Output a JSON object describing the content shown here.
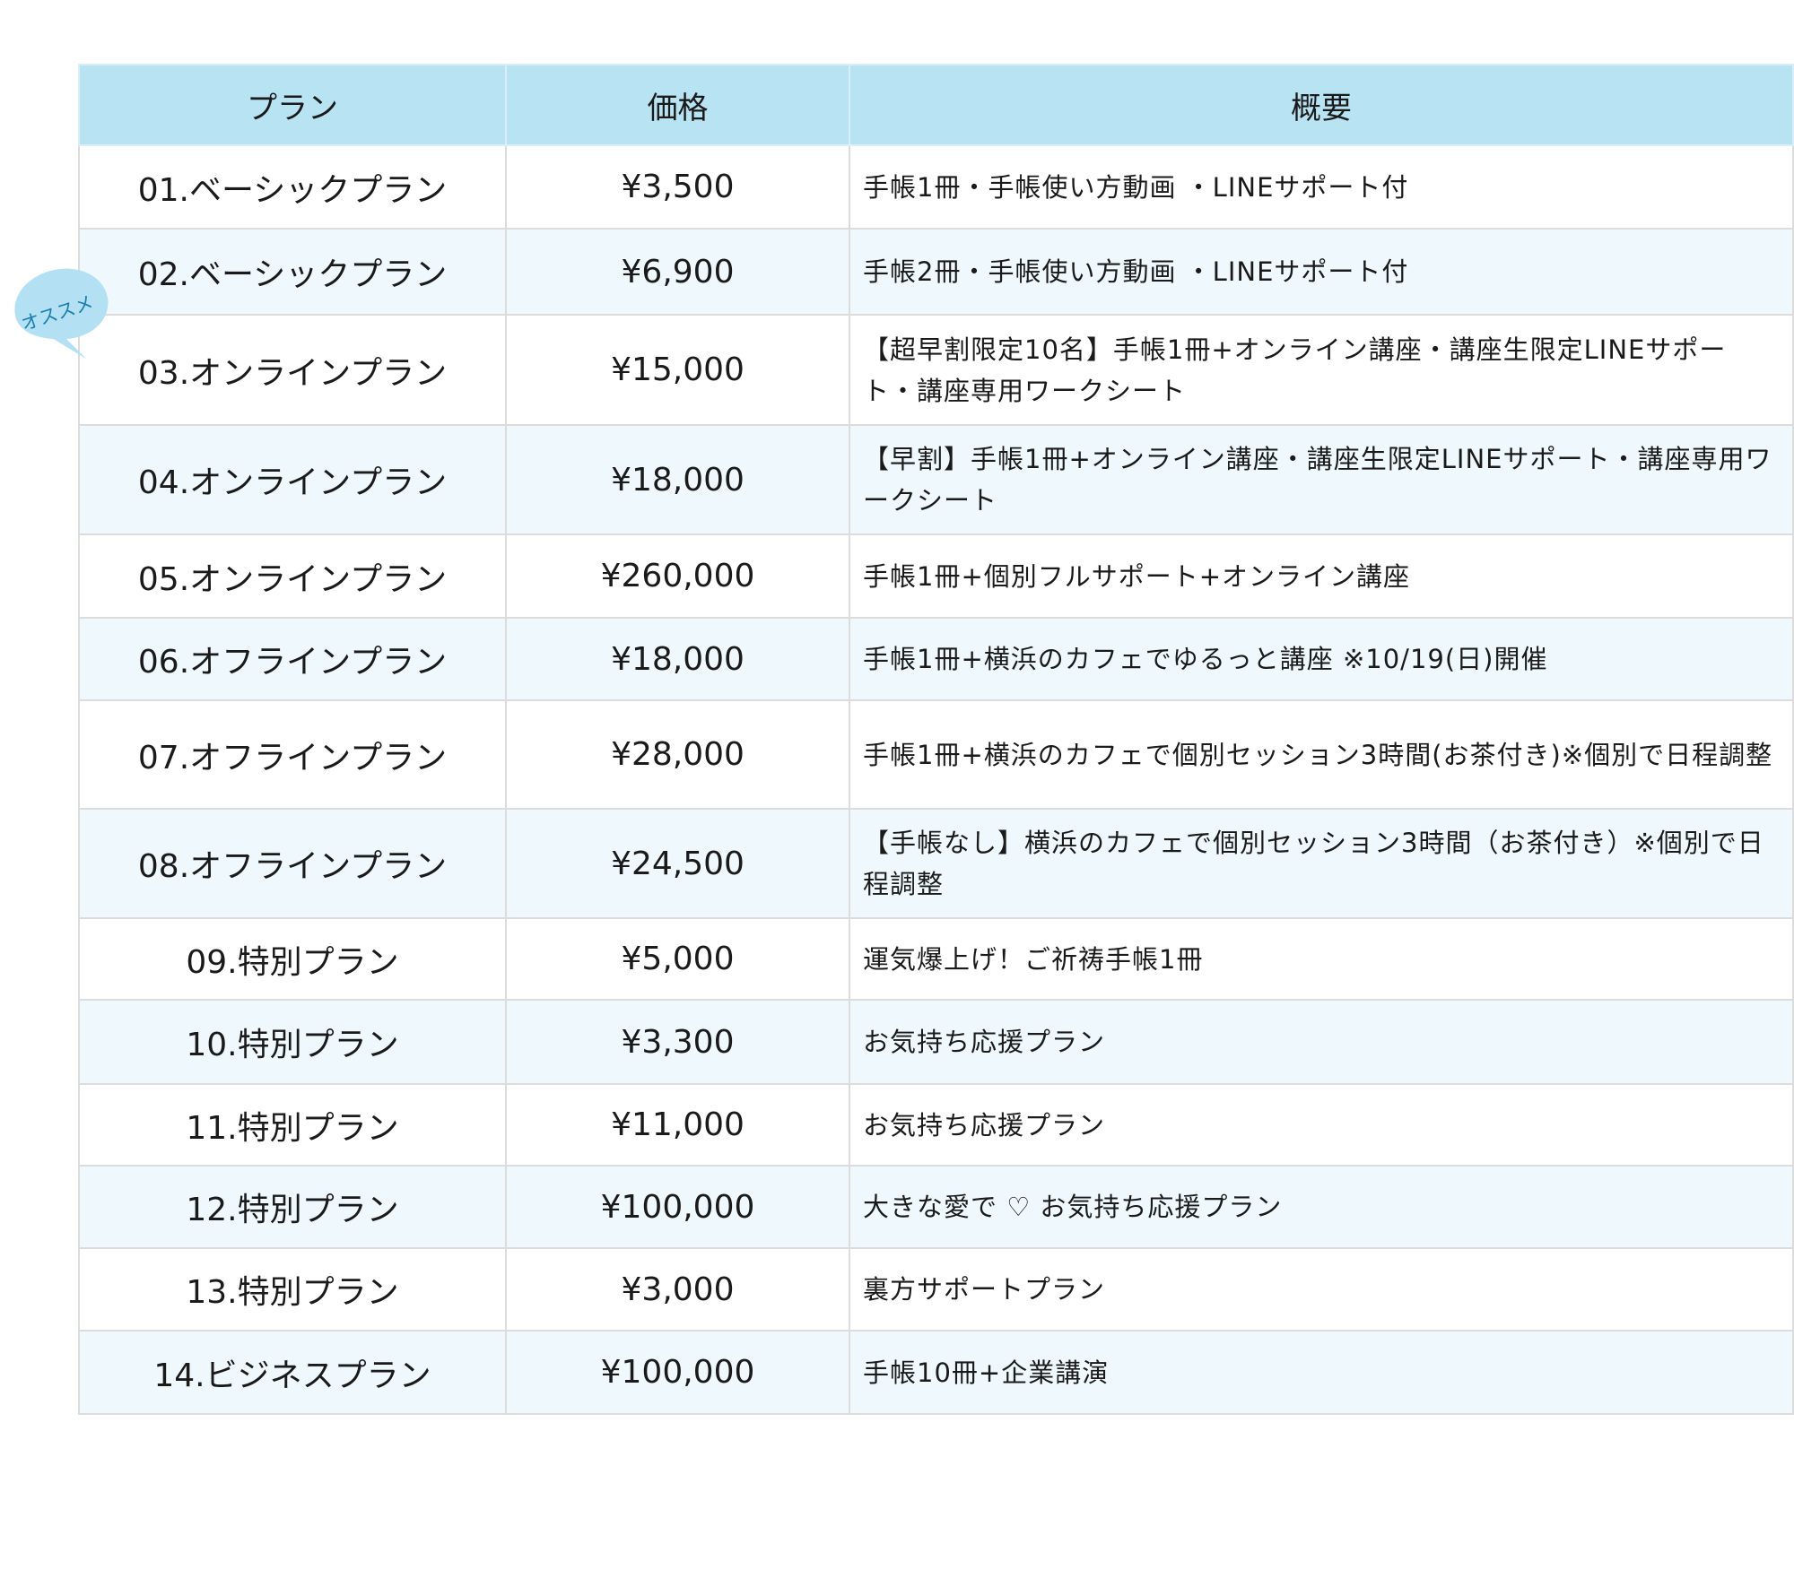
{
  "headers": {
    "plan": "プラン",
    "price": "価格",
    "summary": "概要"
  },
  "badge": "オススメ",
  "colors": {
    "header_bg": "#b8e3f3",
    "alt_row_bg": "#eff9fd",
    "badge_bg": "#b3e0f2",
    "badge_text": "#1a7fb0"
  },
  "rows": [
    {
      "plan": "01.ベーシックプラン",
      "price": "¥3,500",
      "summary": "手帳1冊・手帳使い方動画 ・LINEサポート付"
    },
    {
      "plan": "02.ベーシックプラン",
      "price": "¥6,900",
      "summary": "手帳2冊・手帳使い方動画 ・LINEサポート付"
    },
    {
      "plan": "03.オンラインプラン",
      "price": "¥15,000",
      "summary": "【超早割限定10名】手帳1冊+オンライン講座・講座生限定LINEサポート・講座専用ワークシート"
    },
    {
      "plan": "04.オンラインプラン",
      "price": "¥18,000",
      "summary": "【早割】手帳1冊+オンライン講座・講座生限定LINEサポート・講座専用ワークシート"
    },
    {
      "plan": "05.オンラインプラン",
      "price": "¥260,000",
      "summary": "手帳1冊+個別フルサポート+オンライン講座"
    },
    {
      "plan": "06.オフラインプラン",
      "price": "¥18,000",
      "summary": "手帳1冊+横浜のカフェでゆるっと講座 ※10/19(日)開催"
    },
    {
      "plan": "07.オフラインプラン",
      "price": "¥28,000",
      "summary": "手帳1冊+横浜のカフェで個別セッション3時間(お茶付き)※個別で日程調整"
    },
    {
      "plan": "08.オフラインプラン",
      "price": "¥24,500",
      "summary": "【手帳なし】横浜のカフェで個別セッション3時間（お茶付き）※個別で日程調整"
    },
    {
      "plan": "09.特別プラン",
      "price": "¥5,000",
      "summary": "運気爆上げ！ご祈祷手帳1冊"
    },
    {
      "plan": "10.特別プラン",
      "price": "¥3,300",
      "summary": "お気持ち応援プラン"
    },
    {
      "plan": "11.特別プラン",
      "price": "¥11,000",
      "summary": "お気持ち応援プラン"
    },
    {
      "plan": "12.特別プラン",
      "price": "¥100,000",
      "summary": "大きな愛で ♡ お気持ち応援プラン"
    },
    {
      "plan": "13.特別プラン",
      "price": "¥3,000",
      "summary": "裏方サポートプラン"
    },
    {
      "plan": "14.ビジネスプラン",
      "price": "¥100,000",
      "summary": "手帳10冊+企業講演"
    }
  ]
}
